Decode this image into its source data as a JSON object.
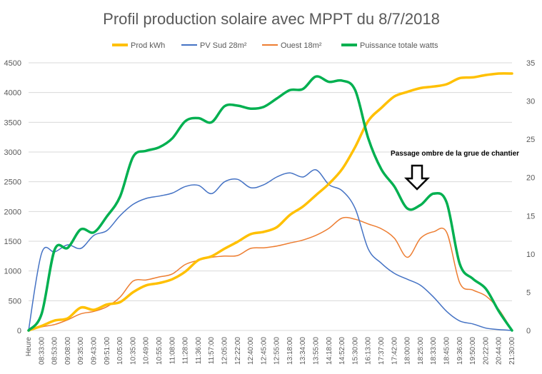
{
  "chart_data": {
    "type": "line",
    "title": "Profil production solaire avec MPPT du 8/7/2018",
    "xlabel": "",
    "ylabel": "",
    "ylim": [
      0,
      4500
    ],
    "y2lim": [
      0,
      35
    ],
    "y_ticks": [
      0,
      500,
      1000,
      1500,
      2000,
      2500,
      3000,
      3500,
      4000,
      4500
    ],
    "y2_ticks": [
      0,
      5,
      10,
      15,
      20,
      25,
      30,
      35
    ],
    "grid": true,
    "legend": "top",
    "categories": [
      "Heure",
      "08:33:00",
      "08:53:00",
      "09:08:00",
      "09:35:00",
      "09:43:00",
      "09:51:00",
      "10:05:00",
      "10:35:00",
      "10:49:00",
      "10:55:00",
      "11:08:00",
      "11:28:00",
      "11:36:00",
      "11:57:00",
      "12:05:00",
      "12:22:00",
      "12:40:00",
      "12:45:00",
      "12:55:00",
      "13:18:00",
      "13:34:00",
      "13:55:00",
      "14:18:00",
      "14:52:00",
      "15:30:00",
      "16:13:00",
      "17:37:00",
      "17:42:00",
      "18:00:00",
      "18:25:00",
      "18:33:00",
      "18:45:00",
      "19:36:00",
      "19:50:00",
      "20:22:00",
      "20:44:00",
      "21:30:00"
    ],
    "series": [
      {
        "name": "Prod kWh",
        "axis": "secondary",
        "color": "#FFC000",
        "values": [
          0.0,
          0.6,
          1.3,
          1.6,
          3.0,
          2.7,
          3.4,
          3.7,
          5.0,
          5.9,
          6.2,
          6.7,
          7.7,
          9.2,
          9.7,
          10.7,
          11.6,
          12.6,
          12.9,
          13.5,
          15.1,
          16.2,
          17.7,
          19.2,
          21.1,
          24.0,
          27.4,
          29.1,
          30.6,
          31.2,
          31.7,
          31.9,
          32.2,
          33.0,
          33.1,
          33.4,
          33.6,
          33.6
        ]
      },
      {
        "name": "PV Sud 28m²",
        "axis": "primary",
        "color": "#4472C4",
        "values": [
          0,
          1300,
          1320,
          1440,
          1380,
          1600,
          1680,
          1930,
          2120,
          2220,
          2260,
          2310,
          2420,
          2440,
          2300,
          2500,
          2540,
          2400,
          2450,
          2580,
          2650,
          2580,
          2700,
          2450,
          2350,
          2050,
          1370,
          1130,
          960,
          860,
          760,
          560,
          320,
          160,
          110,
          40,
          15,
          0
        ]
      },
      {
        "name": "Ouest 18m²",
        "axis": "primary",
        "color": "#ED7D31",
        "values": [
          0,
          60,
          100,
          180,
          280,
          320,
          400,
          560,
          830,
          850,
          900,
          950,
          1110,
          1180,
          1230,
          1250,
          1260,
          1380,
          1390,
          1420,
          1470,
          1520,
          1600,
          1720,
          1890,
          1870,
          1790,
          1710,
          1550,
          1230,
          1550,
          1660,
          1650,
          800,
          680,
          580,
          350,
          0
        ]
      },
      {
        "name": "Puissance totale watts",
        "axis": "primary",
        "color": "#00B050",
        "values": [
          0,
          280,
          1360,
          1390,
          1700,
          1650,
          1920,
          2250,
          2920,
          3020,
          3080,
          3230,
          3520,
          3570,
          3500,
          3770,
          3780,
          3730,
          3760,
          3900,
          4040,
          4060,
          4270,
          4180,
          4200,
          4040,
          3230,
          2710,
          2420,
          2050,
          2110,
          2300,
          2150,
          1120,
          870,
          700,
          320,
          0
        ]
      }
    ],
    "annotations": [
      {
        "text": "Passage ombre de la grue de chantier",
        "category_index": 29,
        "value": 2050
      }
    ]
  }
}
